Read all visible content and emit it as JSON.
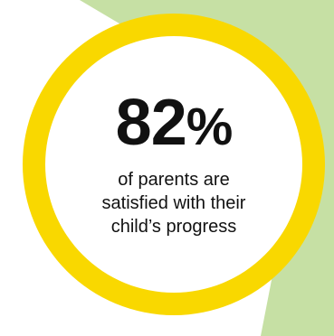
{
  "chart_data": {
    "type": "pie",
    "value": 82,
    "unit": "%",
    "caption": "of parents are satisfied with their child’s progress",
    "caption_lines": [
      "of parents are",
      "satisfied with their",
      "child’s progress"
    ],
    "colors": {
      "ring": "#f9d800",
      "background_shape": "#c6e0a4",
      "center": "#ffffff",
      "text": "#111111"
    }
  }
}
